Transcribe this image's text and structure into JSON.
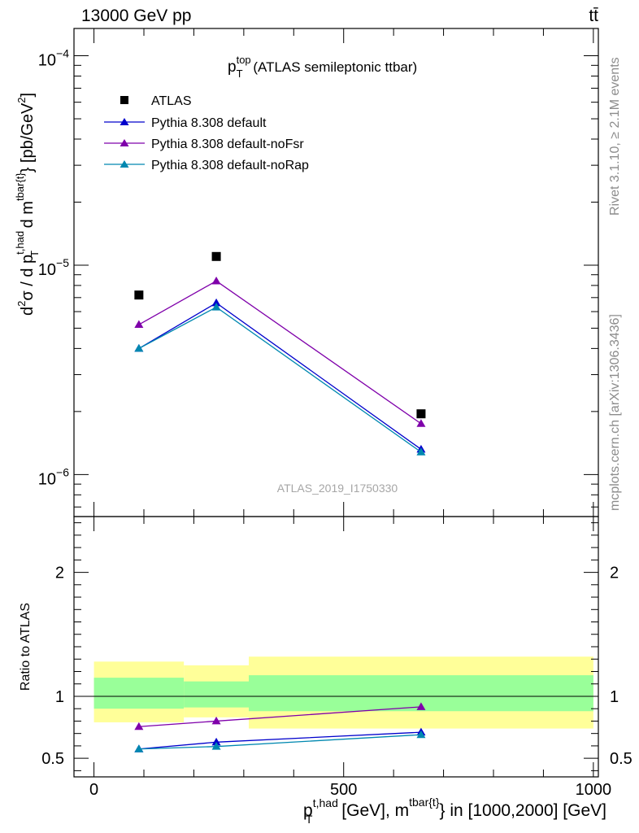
{
  "header": {
    "left": "13000 GeV pp",
    "right": "tt̄"
  },
  "side": {
    "rivet": "Rivet 3.1.10, ≥ 2.1M events",
    "mcplots": "mcplots.cern.ch [arXiv:1306.3436]"
  },
  "chart_data": [
    {
      "type": "scatter",
      "title_main": "p",
      "title_sup": "top",
      "title_sub": "T",
      "title_rest": " (ATLAS semileptonic ttbar)",
      "watermark": "ATLAS_2019_I1750330",
      "ylabel": {
        "a": "d",
        "a_sup": "2",
        "b": "σ / d p",
        "b_sup": "t,had",
        "b_sub": "T",
        "c": " d m",
        "c_sup": "tbar{t}",
        "d": "} [pb/GeV",
        "d_sup": "2",
        "e": "]"
      },
      "yscale": "log",
      "ylim": [
        6.3e-07,
        0.000135
      ],
      "xlim": [
        -40,
        1010
      ],
      "ytick_labels": [
        {
          "base": "10",
          "exp": "−4",
          "value": 0.0001
        },
        {
          "base": "10",
          "exp": "−5",
          "value": 1e-05
        },
        {
          "base": "10",
          "exp": "−6",
          "value": 1e-06
        }
      ],
      "legend_position": "top-left",
      "series": [
        {
          "name": "ATLAS",
          "color": "#000000",
          "marker": "square",
          "x": [
            90,
            245,
            655
          ],
          "y": [
            7.2e-06,
            1.1e-05,
            1.95e-06
          ]
        },
        {
          "name": "Pythia 8.308 default",
          "color": "#0000cc",
          "marker": "triangle",
          "x": [
            90,
            245,
            655
          ],
          "y": [
            4e-06,
            6.6e-06,
            1.32e-06
          ]
        },
        {
          "name": "Pythia 8.308 default-noFsr",
          "color": "#7f00aa",
          "marker": "triangle",
          "x": [
            90,
            245,
            655
          ],
          "y": [
            5.2e-06,
            8.4e-06,
            1.75e-06
          ]
        },
        {
          "name": "Pythia 8.308 default-noRap",
          "color": "#0088b0",
          "marker": "triangle",
          "x": [
            90,
            245,
            655
          ],
          "y": [
            4e-06,
            6.3e-06,
            1.28e-06
          ]
        }
      ]
    },
    {
      "type": "scatter",
      "ylabel": "Ratio to ATLAS",
      "xlabel": {
        "a": "p",
        "a_sup": "t,had",
        "a_sub": "T",
        "b": " [GeV], m",
        "b_sup": "tbar{t}",
        "c": "} in [1000,2000] [GeV]"
      },
      "ylim": [
        0.35,
        2.45
      ],
      "xlim": [
        -40,
        1010
      ],
      "ytick_labels": [
        "2",
        "1",
        "0.5"
      ],
      "ytick_values": [
        2,
        1,
        0.5
      ],
      "xtick_labels": [
        "0",
        "500",
        "1000"
      ],
      "xtick_values": [
        0,
        500,
        1000
      ],
      "bands": [
        {
          "x0": 0,
          "x1": 180,
          "yellow": [
            0.79,
            1.28
          ],
          "green": [
            0.9,
            1.15
          ]
        },
        {
          "x0": 180,
          "x1": 310,
          "yellow": [
            0.83,
            1.25
          ],
          "green": [
            0.91,
            1.12
          ]
        },
        {
          "x0": 310,
          "x1": 1000,
          "yellow": [
            0.74,
            1.32
          ],
          "green": [
            0.88,
            1.17
          ]
        }
      ],
      "band_colors": {
        "yellow": "#ffff99",
        "green": "#99ff99"
      },
      "reference_line": 1,
      "series": [
        {
          "name": "Pythia 8.308 default",
          "color": "#0000cc",
          "x": [
            90,
            245,
            655
          ],
          "y": [
            0.575,
            0.63,
            0.71
          ]
        },
        {
          "name": "Pythia 8.308 default-noFsr",
          "color": "#7f00aa",
          "x": [
            90,
            245,
            655
          ],
          "y": [
            0.755,
            0.8,
            0.915
          ]
        },
        {
          "name": "Pythia 8.308 default-noRap",
          "color": "#0088b0",
          "x": [
            90,
            245,
            655
          ],
          "y": [
            0.575,
            0.595,
            0.69
          ]
        }
      ]
    }
  ]
}
